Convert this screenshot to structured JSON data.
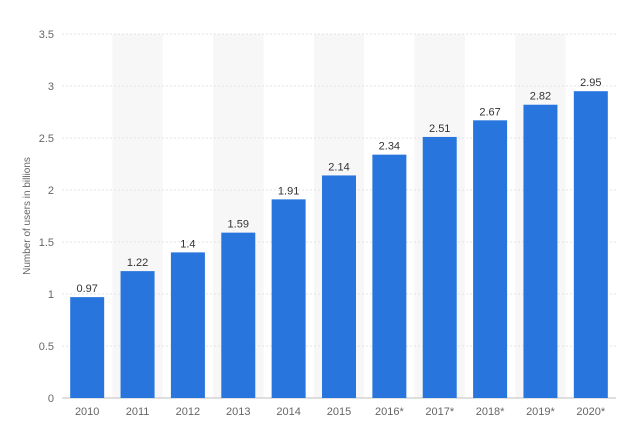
{
  "chart_data": {
    "type": "bar",
    "categories": [
      "2010",
      "2011",
      "2012",
      "2013",
      "2014",
      "2015",
      "2016*",
      "2017*",
      "2018*",
      "2019*",
      "2020*"
    ],
    "values": [
      0.97,
      1.22,
      1.4,
      1.59,
      1.91,
      2.14,
      2.34,
      2.51,
      2.67,
      2.82,
      2.95
    ],
    "value_labels": [
      "0.97",
      "1.22",
      "1.4",
      "1.59",
      "1.91",
      "2.14",
      "2.34",
      "2.51",
      "2.67",
      "2.82",
      "2.95"
    ],
    "title": "",
    "xlabel": "",
    "ylabel": "Number of users in billions",
    "ylim": [
      0,
      3.5
    ],
    "yticks": [
      "0",
      "0.5",
      "1",
      "1.5",
      "2",
      "2.5",
      "3",
      "3.5"
    ],
    "grid": true,
    "alternating_column_shading": true,
    "bar_color": "#2876dd",
    "shade_color": "#f7f7f7",
    "grid_color": "#e3e3e3"
  }
}
